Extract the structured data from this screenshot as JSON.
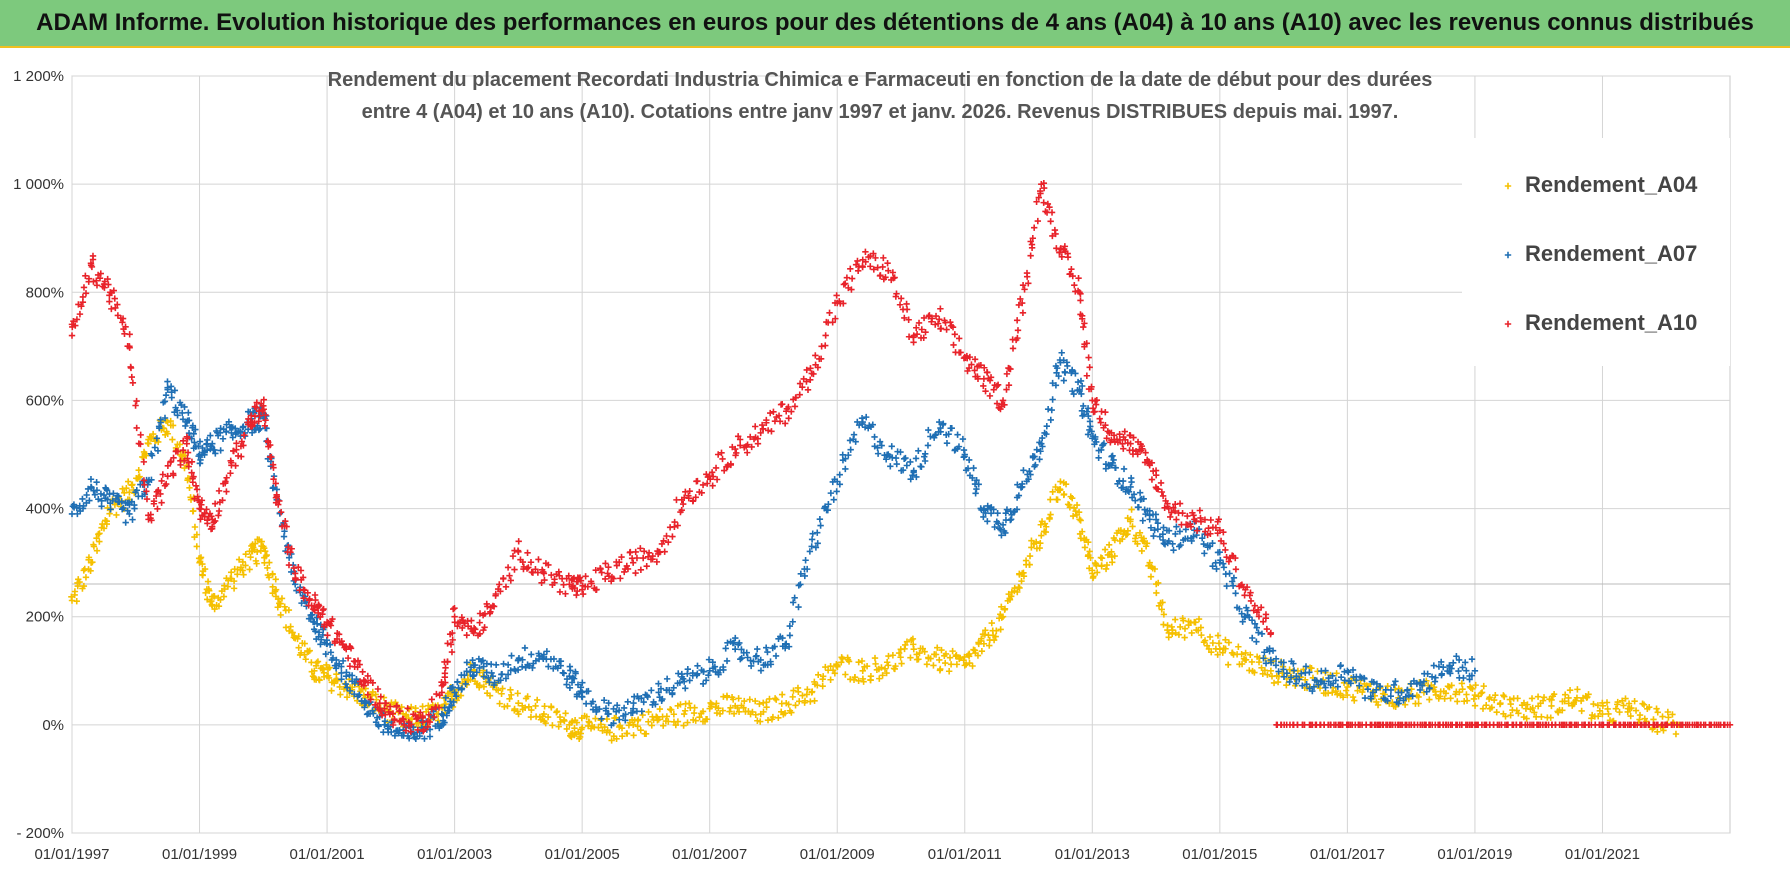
{
  "banner": {
    "title": "ADAM Informe. Evolution historique des performances en euros pour des détentions de 4 ans (A04) à 10 ans (A10) avec les revenus connus distribués"
  },
  "chart_data": {
    "type": "scatter",
    "title_lines": [
      "Rendement du placement Recordati Industria Chimica e Farmaceuti en fonction de la date de début pour des durées",
      "entre 4 (A04) et 10 ans (A10).  Cotations entre janv 1997 et janv. 2026. Revenus DISTRIBUES depuis mai. 1997."
    ],
    "y_tick_labels": [
      "1 200%",
      "1 000%",
      "800%",
      "600%",
      "400%",
      "200%",
      "0%",
      "- 200%"
    ],
    "y_tick_values": [
      1200,
      1000,
      800,
      600,
      400,
      200,
      0,
      -200
    ],
    "ylim": [
      -200,
      1200
    ],
    "x_tick_labels": [
      "01/01/1997",
      "01/01/1999",
      "01/01/2001",
      "01/01/2003",
      "01/01/2005",
      "01/01/2007",
      "01/01/2009",
      "01/01/2011",
      "01/01/2013",
      "01/01/2015",
      "01/01/2017",
      "01/01/2019",
      "01/01/2021"
    ],
    "x_tick_values": [
      1997,
      1999,
      2001,
      2003,
      2005,
      2007,
      2009,
      2011,
      2013,
      2015,
      2017,
      2019,
      2021
    ],
    "xlim": [
      1997,
      2023
    ],
    "grid": true,
    "legend_position": "top-right",
    "series": [
      {
        "name": "Rendement_A04",
        "color": "#f5c000",
        "x": [
          1997.0,
          1997.3,
          1997.6,
          1997.9,
          1998.2,
          1998.5,
          1998.8,
          1999.0,
          1999.2,
          1999.5,
          1999.8,
          2000.0,
          2000.2,
          2000.5,
          2000.8,
          2001.0,
          2001.3,
          2001.6,
          2001.9,
          2002.2,
          2002.5,
          2002.8,
          2003.0,
          2003.3,
          2003.6,
          2004.0,
          2004.4,
          2004.8,
          2005.0,
          2005.4,
          2005.8,
          2006.2,
          2006.6,
          2007.0,
          2007.4,
          2007.8,
          2008.2,
          2008.6,
          2009.0,
          2009.4,
          2009.8,
          2010.2,
          2010.6,
          2011.0,
          2011.3,
          2011.6,
          2011.9,
          2012.2,
          2012.5,
          2012.8,
          2013.0,
          2013.3,
          2013.6,
          2013.9,
          2014.2,
          2014.6,
          2015.0,
          2015.4,
          2015.8,
          2016.2,
          2016.6,
          2017.0,
          2017.4,
          2017.8,
          2018.2,
          2018.6,
          2019.0,
          2019.4,
          2019.8,
          2020.2,
          2020.6,
          2021.0,
          2021.4,
          2021.8,
          2022.2
        ],
        "y": [
          230,
          300,
          400,
          430,
          520,
          560,
          480,
          300,
          220,
          270,
          310,
          330,
          250,
          160,
          100,
          90,
          70,
          50,
          30,
          10,
          15,
          20,
          60,
          100,
          70,
          40,
          20,
          0,
          -5,
          -10,
          0,
          10,
          20,
          30,
          35,
          20,
          40,
          60,
          110,
          100,
          110,
          140,
          120,
          110,
          150,
          200,
          280,
          350,
          450,
          380,
          280,
          320,
          380,
          300,
          170,
          190,
          140,
          120,
          100,
          90,
          80,
          70,
          60,
          50,
          60,
          70,
          55,
          40,
          30,
          35,
          50,
          20,
          30,
          10,
          0
        ]
      },
      {
        "name": "Rendement_A07",
        "color": "#1f6fb4",
        "x": [
          1997.0,
          1997.3,
          1997.6,
          1997.9,
          1998.2,
          1998.5,
          1998.8,
          1999.0,
          1999.2,
          1999.5,
          1999.8,
          2000.0,
          2000.2,
          2000.5,
          2000.8,
          2001.0,
          2001.3,
          2001.6,
          2001.9,
          2002.2,
          2002.5,
          2002.8,
          2003.0,
          2003.3,
          2003.6,
          2004.0,
          2004.4,
          2004.8,
          2005.0,
          2005.4,
          2005.8,
          2006.2,
          2006.6,
          2007.0,
          2007.4,
          2007.8,
          2008.2,
          2008.6,
          2009.0,
          2009.4,
          2009.8,
          2010.2,
          2010.6,
          2011.0,
          2011.3,
          2011.6,
          2011.9,
          2012.2,
          2012.5,
          2012.8,
          2013.0,
          2013.3,
          2013.6,
          2013.9,
          2014.2,
          2014.6,
          2015.0,
          2015.4,
          2015.8,
          2016.2,
          2016.6,
          2017.0,
          2017.4,
          2017.8,
          2018.2,
          2018.6,
          2019.0
        ],
        "y": [
          390,
          440,
          410,
          390,
          450,
          620,
          560,
          500,
          520,
          540,
          560,
          570,
          420,
          260,
          190,
          150,
          90,
          40,
          0,
          -20,
          -10,
          20,
          60,
          110,
          90,
          120,
          130,
          90,
          60,
          20,
          30,
          60,
          80,
          100,
          140,
          120,
          150,
          330,
          450,
          560,
          500,
          470,
          560,
          500,
          400,
          370,
          440,
          520,
          670,
          620,
          530,
          480,
          440,
          380,
          340,
          360,
          300,
          200,
          120,
          90,
          80,
          100,
          60,
          60,
          80,
          110,
          100
        ]
      },
      {
        "name": "Rendement_A10",
        "color": "#e8232a",
        "x": [
          1997.0,
          1997.3,
          1997.6,
          1997.9,
          1998.2,
          1998.5,
          1998.8,
          1999.0,
          1999.2,
          1999.5,
          1999.8,
          2000.0,
          2000.2,
          2000.5,
          2000.8,
          2001.0,
          2001.3,
          2001.6,
          2001.9,
          2002.2,
          2002.5,
          2002.8,
          2003.0,
          2003.3,
          2003.6,
          2004.0,
          2004.4,
          2004.8,
          2005.0,
          2005.4,
          2005.8,
          2006.2,
          2006.6,
          2007.0,
          2007.4,
          2007.8,
          2008.2,
          2008.6,
          2009.0,
          2009.4,
          2009.8,
          2010.2,
          2010.6,
          2011.0,
          2011.3,
          2011.6,
          2011.9,
          2012.2,
          2012.5,
          2012.8,
          2013.0,
          2013.3,
          2013.6,
          2013.9,
          2014.2,
          2014.6,
          2015.0,
          2015.4,
          2015.8
        ],
        "y": [
          720,
          850,
          800,
          700,
          380,
          460,
          520,
          400,
          380,
          480,
          560,
          590,
          420,
          280,
          220,
          190,
          140,
          80,
          30,
          10,
          5,
          60,
          200,
          170,
          220,
          320,
          280,
          260,
          250,
          280,
          300,
          320,
          420,
          460,
          510,
          540,
          580,
          650,
          780,
          860,
          840,
          720,
          750,
          680,
          640,
          600,
          780,
          1000,
          880,
          800,
          600,
          540,
          520,
          480,
          400,
          380,
          360,
          250,
          170
        ]
      },
      {
        "name": "",
        "color": "#e8232a",
        "x": [
          2015.9,
          2016.5,
          2017.0,
          2017.5,
          2018.0,
          2018.5,
          2019.0,
          2019.5,
          2020.0,
          2020.5,
          2021.0,
          2021.5,
          2022.0,
          2022.5,
          2023.0
        ],
        "y": [
          0,
          0,
          0,
          0,
          0,
          0,
          0,
          0,
          0,
          0,
          0,
          0,
          0,
          0,
          0
        ]
      }
    ]
  }
}
